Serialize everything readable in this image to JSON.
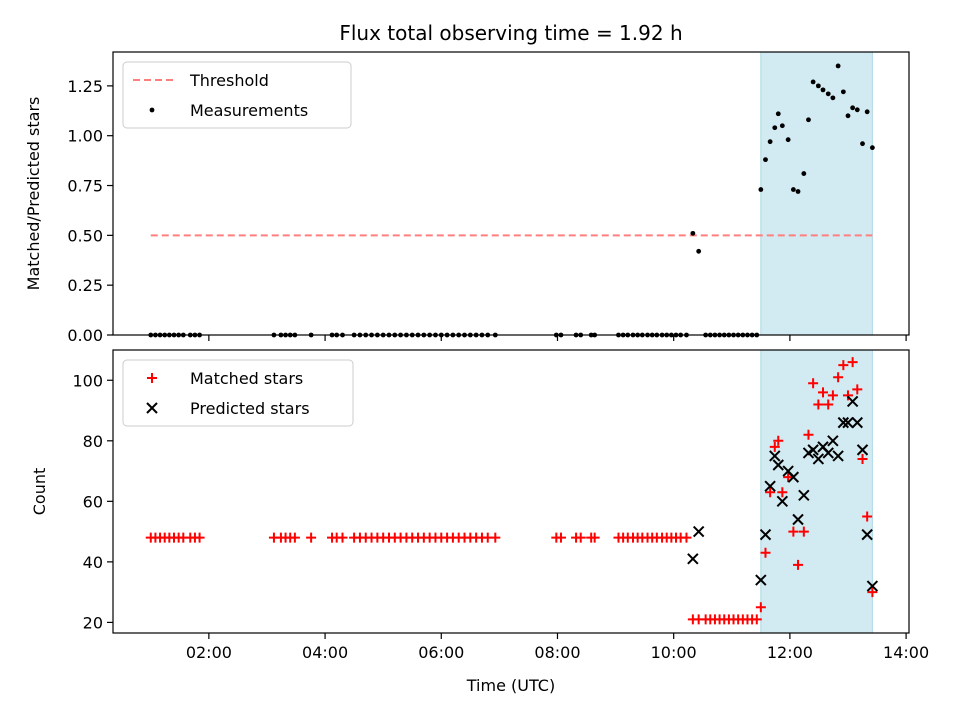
{
  "chart_data": {
    "title": "Flux total observing time = 1.92 h",
    "xlabel": "Time (UTC)",
    "xlim": [
      0.35,
      14.05
    ],
    "x_ticks": [
      {
        "v": 2,
        "label": "02:00"
      },
      {
        "v": 4,
        "label": "04:00"
      },
      {
        "v": 6,
        "label": "06:00"
      },
      {
        "v": 8,
        "label": "08:00"
      },
      {
        "v": 10,
        "label": "10:00"
      },
      {
        "v": 12,
        "label": "12:00"
      },
      {
        "v": 14,
        "label": "14:00"
      }
    ],
    "highlight_span": [
      11.5,
      13.42
    ],
    "colors": {
      "threshold": "#ff7f7f",
      "span": "#add8e6",
      "matched": "#ff0000",
      "predicted": "#000000",
      "measurement": "#000000"
    },
    "panels": [
      {
        "type": "scatter",
        "ylabel": "Matched/Predicted stars",
        "ylim": [
          0,
          1.42
        ],
        "y_ticks": [
          {
            "v": 0,
            "label": "0.00"
          },
          {
            "v": 0.25,
            "label": "0.25"
          },
          {
            "v": 0.5,
            "label": "0.50"
          },
          {
            "v": 0.75,
            "label": "0.75"
          },
          {
            "v": 1.0,
            "label": "1.00"
          },
          {
            "v": 1.25,
            "label": "1.25"
          }
        ],
        "legend": [
          "Threshold",
          "Measurements"
        ],
        "legend_loc": "upper left",
        "threshold": {
          "name": "Threshold",
          "x": [
            1.0,
            13.42
          ],
          "y": 0.5
        },
        "measurements": {
          "name": "Measurements",
          "points": [
            [
              1.0,
              0
            ],
            [
              1.08,
              0
            ],
            [
              1.16,
              0
            ],
            [
              1.24,
              0
            ],
            [
              1.32,
              0
            ],
            [
              1.4,
              0
            ],
            [
              1.48,
              0
            ],
            [
              1.56,
              0
            ],
            [
              1.68,
              0
            ],
            [
              1.76,
              0
            ],
            [
              1.84,
              0
            ],
            [
              3.12,
              0
            ],
            [
              3.24,
              0
            ],
            [
              3.32,
              0
            ],
            [
              3.4,
              0
            ],
            [
              3.48,
              0
            ],
            [
              3.76,
              0
            ],
            [
              4.12,
              0
            ],
            [
              4.2,
              0
            ],
            [
              4.3,
              0
            ],
            [
              4.5,
              0
            ],
            [
              4.6,
              0
            ],
            [
              4.7,
              0
            ],
            [
              4.8,
              0
            ],
            [
              4.9,
              0
            ],
            [
              5.0,
              0
            ],
            [
              5.1,
              0
            ],
            [
              5.2,
              0
            ],
            [
              5.3,
              0
            ],
            [
              5.4,
              0
            ],
            [
              5.5,
              0
            ],
            [
              5.6,
              0
            ],
            [
              5.7,
              0
            ],
            [
              5.8,
              0
            ],
            [
              5.9,
              0
            ],
            [
              6.0,
              0
            ],
            [
              6.1,
              0
            ],
            [
              6.2,
              0
            ],
            [
              6.3,
              0
            ],
            [
              6.4,
              0
            ],
            [
              6.5,
              0
            ],
            [
              6.6,
              0
            ],
            [
              6.7,
              0
            ],
            [
              6.8,
              0
            ],
            [
              6.93,
              0
            ],
            [
              7.98,
              0
            ],
            [
              8.06,
              0
            ],
            [
              8.32,
              0
            ],
            [
              8.4,
              0
            ],
            [
              8.58,
              0
            ],
            [
              8.64,
              0
            ],
            [
              9.05,
              0
            ],
            [
              9.13,
              0
            ],
            [
              9.21,
              0
            ],
            [
              9.3,
              0
            ],
            [
              9.38,
              0
            ],
            [
              9.46,
              0
            ],
            [
              9.55,
              0
            ],
            [
              9.63,
              0
            ],
            [
              9.71,
              0
            ],
            [
              9.8,
              0
            ],
            [
              9.88,
              0
            ],
            [
              9.96,
              0
            ],
            [
              10.04,
              0
            ],
            [
              10.12,
              0
            ],
            [
              10.22,
              0
            ],
            [
              10.33,
              0.51
            ],
            [
              10.43,
              0.42
            ],
            [
              10.55,
              0
            ],
            [
              10.63,
              0
            ],
            [
              10.71,
              0
            ],
            [
              10.79,
              0
            ],
            [
              10.87,
              0
            ],
            [
              10.95,
              0
            ],
            [
              11.03,
              0
            ],
            [
              11.11,
              0
            ],
            [
              11.19,
              0
            ],
            [
              11.27,
              0
            ],
            [
              11.35,
              0
            ],
            [
              11.43,
              0
            ],
            [
              11.5,
              0.73
            ],
            [
              11.58,
              0.88
            ],
            [
              11.66,
              0.97
            ],
            [
              11.74,
              1.04
            ],
            [
              11.8,
              1.11
            ],
            [
              11.87,
              1.05
            ],
            [
              11.97,
              0.98
            ],
            [
              12.06,
              0.73
            ],
            [
              12.14,
              0.72
            ],
            [
              12.24,
              0.81
            ],
            [
              12.32,
              1.08
            ],
            [
              12.4,
              1.27
            ],
            [
              12.49,
              1.25
            ],
            [
              12.57,
              1.23
            ],
            [
              12.66,
              1.21
            ],
            [
              12.74,
              1.19
            ],
            [
              12.83,
              1.35
            ],
            [
              12.92,
              1.22
            ],
            [
              13.0,
              1.1
            ],
            [
              13.08,
              1.14
            ],
            [
              13.16,
              1.13
            ],
            [
              13.25,
              0.96
            ],
            [
              13.33,
              1.12
            ],
            [
              13.42,
              0.94
            ]
          ]
        }
      },
      {
        "type": "scatter",
        "ylabel": "Count",
        "ylim": [
          16.5,
          110
        ],
        "y_ticks": [
          {
            "v": 20,
            "label": "20"
          },
          {
            "v": 40,
            "label": "40"
          },
          {
            "v": 60,
            "label": "60"
          },
          {
            "v": 80,
            "label": "80"
          },
          {
            "v": 100,
            "label": "100"
          }
        ],
        "legend": [
          "Matched stars",
          "Predicted stars"
        ],
        "legend_loc": "upper left",
        "series": [
          {
            "name": "Matched stars",
            "marker": "plus",
            "points": [
              [
                1.0,
                48
              ],
              [
                1.08,
                48
              ],
              [
                1.16,
                48
              ],
              [
                1.24,
                48
              ],
              [
                1.32,
                48
              ],
              [
                1.4,
                48
              ],
              [
                1.48,
                48
              ],
              [
                1.56,
                48
              ],
              [
                1.68,
                48
              ],
              [
                1.76,
                48
              ],
              [
                1.84,
                48
              ],
              [
                3.12,
                48
              ],
              [
                3.24,
                48
              ],
              [
                3.32,
                48
              ],
              [
                3.4,
                48
              ],
              [
                3.48,
                48
              ],
              [
                3.76,
                48
              ],
              [
                4.12,
                48
              ],
              [
                4.2,
                48
              ],
              [
                4.3,
                48
              ],
              [
                4.5,
                48
              ],
              [
                4.6,
                48
              ],
              [
                4.7,
                48
              ],
              [
                4.8,
                48
              ],
              [
                4.9,
                48
              ],
              [
                5.0,
                48
              ],
              [
                5.1,
                48
              ],
              [
                5.2,
                48
              ],
              [
                5.3,
                48
              ],
              [
                5.4,
                48
              ],
              [
                5.5,
                48
              ],
              [
                5.6,
                48
              ],
              [
                5.7,
                48
              ],
              [
                5.8,
                48
              ],
              [
                5.9,
                48
              ],
              [
                6.0,
                48
              ],
              [
                6.1,
                48
              ],
              [
                6.2,
                48
              ],
              [
                6.3,
                48
              ],
              [
                6.4,
                48
              ],
              [
                6.5,
                48
              ],
              [
                6.6,
                48
              ],
              [
                6.7,
                48
              ],
              [
                6.8,
                48
              ],
              [
                6.93,
                48
              ],
              [
                7.98,
                48
              ],
              [
                8.06,
                48
              ],
              [
                8.32,
                48
              ],
              [
                8.4,
                48
              ],
              [
                8.58,
                48
              ],
              [
                8.64,
                48
              ],
              [
                9.05,
                48
              ],
              [
                9.13,
                48
              ],
              [
                9.21,
                48
              ],
              [
                9.3,
                48
              ],
              [
                9.38,
                48
              ],
              [
                9.46,
                48
              ],
              [
                9.55,
                48
              ],
              [
                9.63,
                48
              ],
              [
                9.71,
                48
              ],
              [
                9.8,
                48
              ],
              [
                9.88,
                48
              ],
              [
                9.96,
                48
              ],
              [
                10.04,
                48
              ],
              [
                10.12,
                48
              ],
              [
                10.22,
                48
              ],
              [
                10.33,
                21
              ],
              [
                10.43,
                21
              ],
              [
                10.55,
                21
              ],
              [
                10.63,
                21
              ],
              [
                10.71,
                21
              ],
              [
                10.79,
                21
              ],
              [
                10.87,
                21
              ],
              [
                10.95,
                21
              ],
              [
                11.03,
                21
              ],
              [
                11.11,
                21
              ],
              [
                11.19,
                21
              ],
              [
                11.27,
                21
              ],
              [
                11.35,
                21
              ],
              [
                11.43,
                21
              ],
              [
                11.5,
                25
              ],
              [
                11.58,
                43
              ],
              [
                11.66,
                63
              ],
              [
                11.74,
                78
              ],
              [
                11.8,
                80
              ],
              [
                11.87,
                63
              ],
              [
                11.97,
                68
              ],
              [
                12.06,
                50
              ],
              [
                12.14,
                39
              ],
              [
                12.24,
                50
              ],
              [
                12.32,
                82
              ],
              [
                12.4,
                99
              ],
              [
                12.49,
                92
              ],
              [
                12.57,
                96
              ],
              [
                12.66,
                92
              ],
              [
                12.74,
                95
              ],
              [
                12.83,
                101
              ],
              [
                12.92,
                105
              ],
              [
                13.0,
                95
              ],
              [
                13.08,
                106
              ],
              [
                13.16,
                97
              ],
              [
                13.25,
                74
              ],
              [
                13.33,
                55
              ],
              [
                13.42,
                30
              ]
            ]
          },
          {
            "name": "Predicted stars",
            "marker": "x",
            "points": [
              [
                10.33,
                41
              ],
              [
                10.43,
                50
              ],
              [
                11.5,
                34
              ],
              [
                11.58,
                49
              ],
              [
                11.66,
                65
              ],
              [
                11.74,
                75
              ],
              [
                11.8,
                72
              ],
              [
                11.87,
                60
              ],
              [
                11.97,
                70
              ],
              [
                12.06,
                68
              ],
              [
                12.14,
                54
              ],
              [
                12.24,
                62
              ],
              [
                12.32,
                76
              ],
              [
                12.4,
                77
              ],
              [
                12.49,
                74
              ],
              [
                12.57,
                78
              ],
              [
                12.66,
                76
              ],
              [
                12.74,
                80
              ],
              [
                12.83,
                75
              ],
              [
                12.92,
                86
              ],
              [
                13.0,
                86
              ],
              [
                13.08,
                93
              ],
              [
                13.16,
                86
              ],
              [
                13.25,
                77
              ],
              [
                13.33,
                49
              ],
              [
                13.42,
                32
              ]
            ]
          }
        ]
      }
    ]
  }
}
